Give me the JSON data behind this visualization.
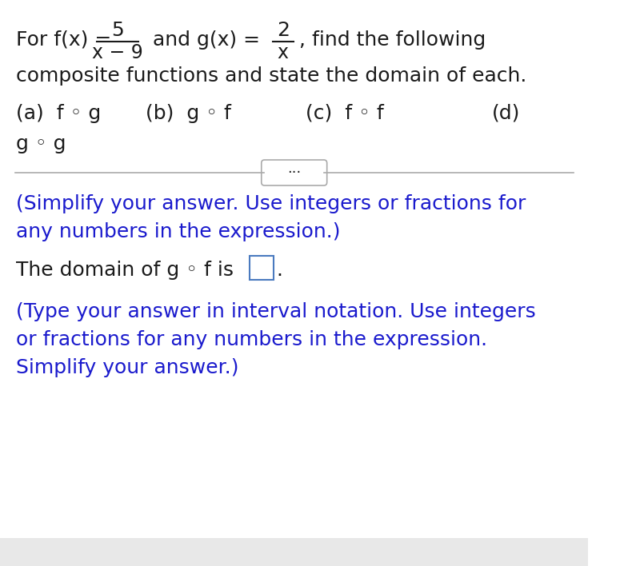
{
  "bg_color": "#ffffff",
  "black_text_color": "#1a1a1a",
  "blue_text_color": "#1a1acd",
  "divider_color": "#aaaaaa",
  "line1_black": "For f(x) = ———— and g(x) = —, find the following",
  "line2_black": "composite functions and state the domain of each.",
  "line3_black": "(a)  f ◦ g          (b)  g ◦ f               (c)  f ◦ f                    (d)",
  "line4_black": "g ◦ g",
  "simplify_blue_1": "(Simplify your answer. Use integers or fractions for",
  "simplify_blue_2": "any numbers in the expression.)",
  "domain_black": "The domain of g ◦ f is",
  "type_blue_1": "(Type your answer in interval notation. Use integers",
  "type_blue_2": "or fractions for any numbers in the expression.",
  "type_blue_3": "Simplify your answer.)",
  "f_numerator": "5",
  "f_denominator": "x − 9",
  "g_numerator": "2",
  "g_denominator": "x"
}
